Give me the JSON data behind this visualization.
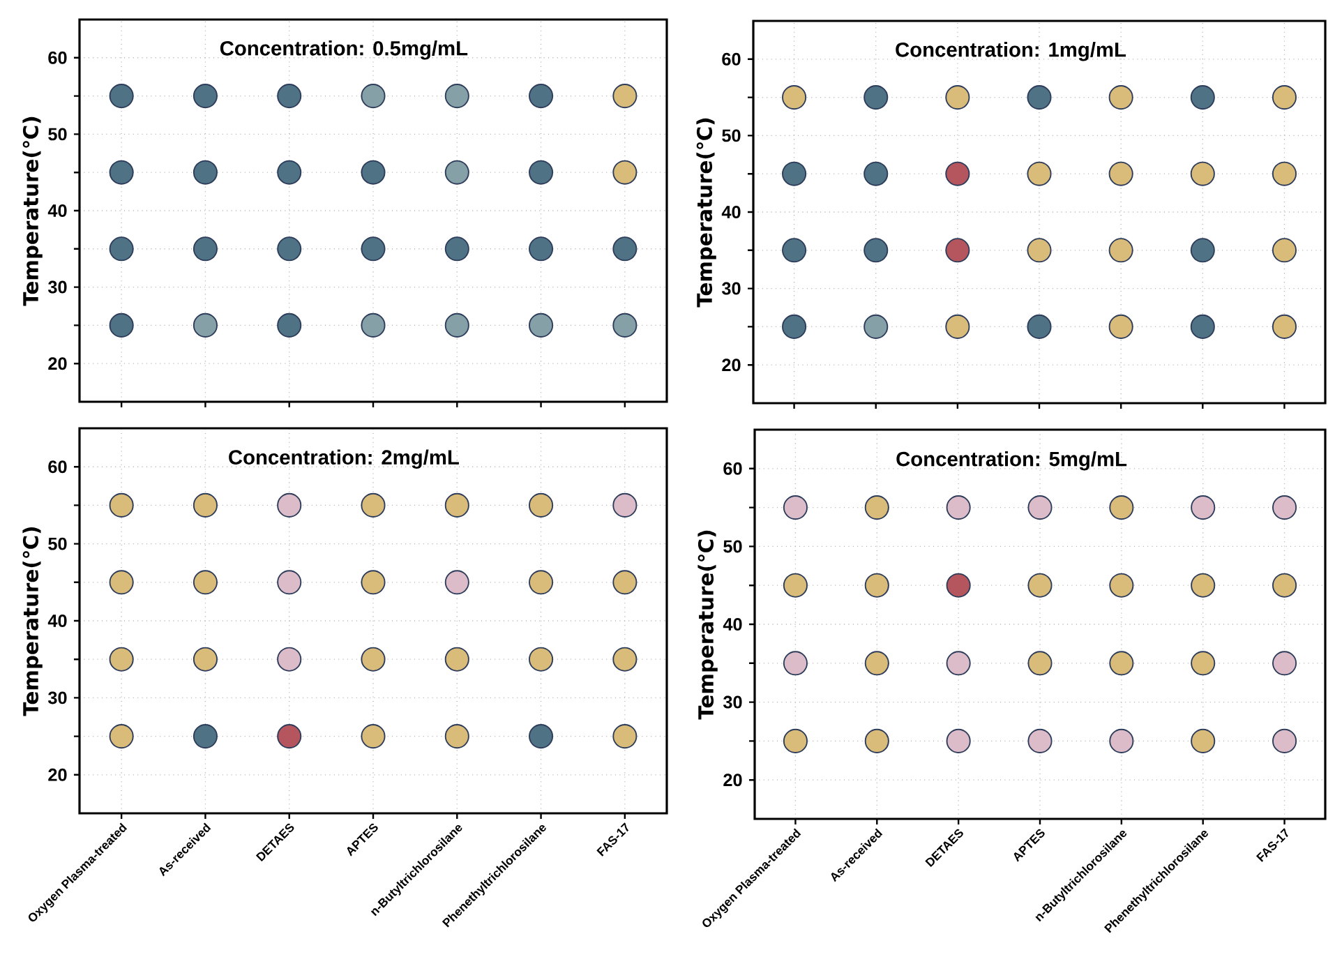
{
  "chart_data": [
    {
      "type": "scatter",
      "title": "Concentration: 0.5mg/mL",
      "ylabel": "Temperature(℃)",
      "categories": [
        null,
        null,
        null,
        null,
        null,
        null,
        null
      ],
      "ylim": [
        15,
        65
      ],
      "yticks": [
        20,
        {
          "value": 25,
          "label": null
        },
        30,
        {
          "value": 35,
          "label": null
        },
        40,
        {
          "value": 45,
          "label": null
        },
        50,
        {
          "value": 55,
          "label": null
        },
        60
      ],
      "grid": true,
      "marker": "circle",
      "tick_labels": "y",
      "series": [
        {
          "values": [
            25,
            25,
            25,
            25,
            25,
            25,
            25
          ],
          "colors": [
            "#4f7284",
            "#85a0a6",
            "#4f7284",
            "#85a0a6",
            "#85a0a6",
            "#85a0a6",
            "#85a0a6"
          ]
        },
        {
          "values": [
            35,
            35,
            35,
            35,
            35,
            35,
            35
          ],
          "colors": [
            "#4f7284",
            "#4f7284",
            "#4f7284",
            "#4f7284",
            "#4f7284",
            "#4f7284",
            "#4f7284"
          ]
        },
        {
          "values": [
            45,
            45,
            45,
            45,
            45,
            45,
            45
          ],
          "colors": [
            "#4f7284",
            "#4f7284",
            "#4f7284",
            "#4f7284",
            "#85a0a6",
            "#4f7284",
            "#d9bb7a"
          ]
        },
        {
          "values": [
            55,
            55,
            55,
            55,
            55,
            55,
            55
          ],
          "colors": [
            "#4f7284",
            "#4f7284",
            "#4f7284",
            "#85a0a6",
            "#85a0a6",
            "#4f7284",
            "#d9bb7a"
          ]
        }
      ]
    },
    {
      "type": "scatter",
      "title": "Concentration: 1mg/mL",
      "ylabel": "Temperature(℃)",
      "categories": [
        null,
        null,
        null,
        null,
        null,
        null,
        null
      ],
      "ylim": [
        15,
        65
      ],
      "yticks": [
        20,
        {
          "value": 25,
          "label": null
        },
        30,
        {
          "value": 35,
          "label": null
        },
        40,
        {
          "value": 45,
          "label": null
        },
        50,
        {
          "value": 55,
          "label": null
        },
        60
      ],
      "grid": true,
      "marker": "circle",
      "tick_labels": "y",
      "series": [
        {
          "values": [
            25,
            25,
            25,
            25,
            25,
            25,
            25
          ],
          "colors": [
            "#4f7284",
            "#85a0a6",
            "#d9bb7a",
            "#4f7284",
            "#d9bb7a",
            "#4f7284",
            "#d9bb7a"
          ]
        },
        {
          "values": [
            35,
            35,
            35,
            35,
            35,
            35,
            35
          ],
          "colors": [
            "#4f7284",
            "#4f7284",
            "#b5565f",
            "#d9bb7a",
            "#d9bb7a",
            "#4f7284",
            "#d9bb7a"
          ]
        },
        {
          "values": [
            45,
            45,
            45,
            45,
            45,
            45,
            45
          ],
          "colors": [
            "#4f7284",
            "#4f7284",
            "#b5565f",
            "#d9bb7a",
            "#d9bb7a",
            "#d9bb7a",
            "#d9bb7a"
          ]
        },
        {
          "values": [
            55,
            55,
            55,
            55,
            55,
            55,
            55
          ],
          "colors": [
            "#d9bb7a",
            "#4f7284",
            "#d9bb7a",
            "#4f7284",
            "#d9bb7a",
            "#4f7284",
            "#d9bb7a"
          ]
        }
      ]
    },
    {
      "type": "scatter",
      "title": "Concentration: 2mg/mL",
      "ylabel": "Temperature(℃)",
      "categories": [
        "Oxygen Plasma-treated",
        "As-received",
        "DETAES",
        "APTES",
        "n-Butyltrichlorosilane",
        "Phenethyltrichlorosilane",
        "FAS-17"
      ],
      "ylim": [
        15,
        65
      ],
      "yticks": [
        20,
        {
          "value": 25,
          "label": null
        },
        30,
        {
          "value": 35,
          "label": null
        },
        40,
        {
          "value": 45,
          "label": null
        },
        50,
        {
          "value": 55,
          "label": null
        },
        60
      ],
      "grid": true,
      "marker": "circle",
      "series": [
        {
          "values": [
            25,
            25,
            25,
            25,
            25,
            25,
            25
          ],
          "colors": [
            "#d9bb7a",
            "#4f7284",
            "#b5565f",
            "#d9bb7a",
            "#d9bb7a",
            "#4f7284",
            "#d9bb7a"
          ]
        },
        {
          "values": [
            35,
            35,
            35,
            35,
            35,
            35,
            35
          ],
          "colors": [
            "#d9bb7a",
            "#d9bb7a",
            "#dcbcc8",
            "#d9bb7a",
            "#d9bb7a",
            "#d9bb7a",
            "#d9bb7a"
          ]
        },
        {
          "values": [
            45,
            45,
            45,
            45,
            45,
            45,
            45
          ],
          "colors": [
            "#d9bb7a",
            "#d9bb7a",
            "#dcbcc8",
            "#d9bb7a",
            "#dcbcc8",
            "#d9bb7a",
            "#d9bb7a"
          ]
        },
        {
          "values": [
            55,
            55,
            55,
            55,
            55,
            55,
            55
          ],
          "colors": [
            "#d9bb7a",
            "#d9bb7a",
            "#dcbcc8",
            "#d9bb7a",
            "#d9bb7a",
            "#d9bb7a",
            "#dcbcc8"
          ]
        }
      ]
    },
    {
      "type": "scatter",
      "title": "Concentration: 5mg/mL",
      "ylabel": "Temperature(℃)",
      "categories": [
        "Oxygen Plasma-treated",
        "As-received",
        "DETAES",
        "APTES",
        "n-Butyltrichlorosilane",
        "Phenethyltrichlorosilane",
        "FAS-17"
      ],
      "ylim": [
        15,
        65
      ],
      "yticks": [
        20,
        {
          "value": 25,
          "label": null
        },
        30,
        {
          "value": 35,
          "label": null
        },
        40,
        {
          "value": 45,
          "label": null
        },
        50,
        {
          "value": 55,
          "label": null
        },
        60
      ],
      "grid": true,
      "marker": "circle",
      "series": [
        {
          "values": [
            25,
            25,
            25,
            25,
            25,
            25,
            25
          ],
          "colors": [
            "#d9bb7a",
            "#d9bb7a",
            "#dcbcc8",
            "#dcbcc8",
            "#dcbcc8",
            "#d9bb7a",
            "#dcbcc8"
          ]
        },
        {
          "values": [
            35,
            35,
            35,
            35,
            35,
            35,
            35
          ],
          "colors": [
            "#dcbcc8",
            "#d9bb7a",
            "#dcbcc8",
            "#d9bb7a",
            "#d9bb7a",
            "#d9bb7a",
            "#dcbcc8"
          ]
        },
        {
          "values": [
            45,
            45,
            45,
            45,
            45,
            45,
            45
          ],
          "colors": [
            "#d9bb7a",
            "#d9bb7a",
            "#b5565f",
            "#d9bb7a",
            "#d9bb7a",
            "#d9bb7a",
            "#d9bb7a"
          ]
        },
        {
          "values": [
            55,
            55,
            55,
            55,
            55,
            55,
            55
          ],
          "colors": [
            "#dcbcc8",
            "#d9bb7a",
            "#dcbcc8",
            "#dcbcc8",
            "#d9bb7a",
            "#dcbcc8",
            "#dcbcc8"
          ]
        }
      ]
    }
  ]
}
